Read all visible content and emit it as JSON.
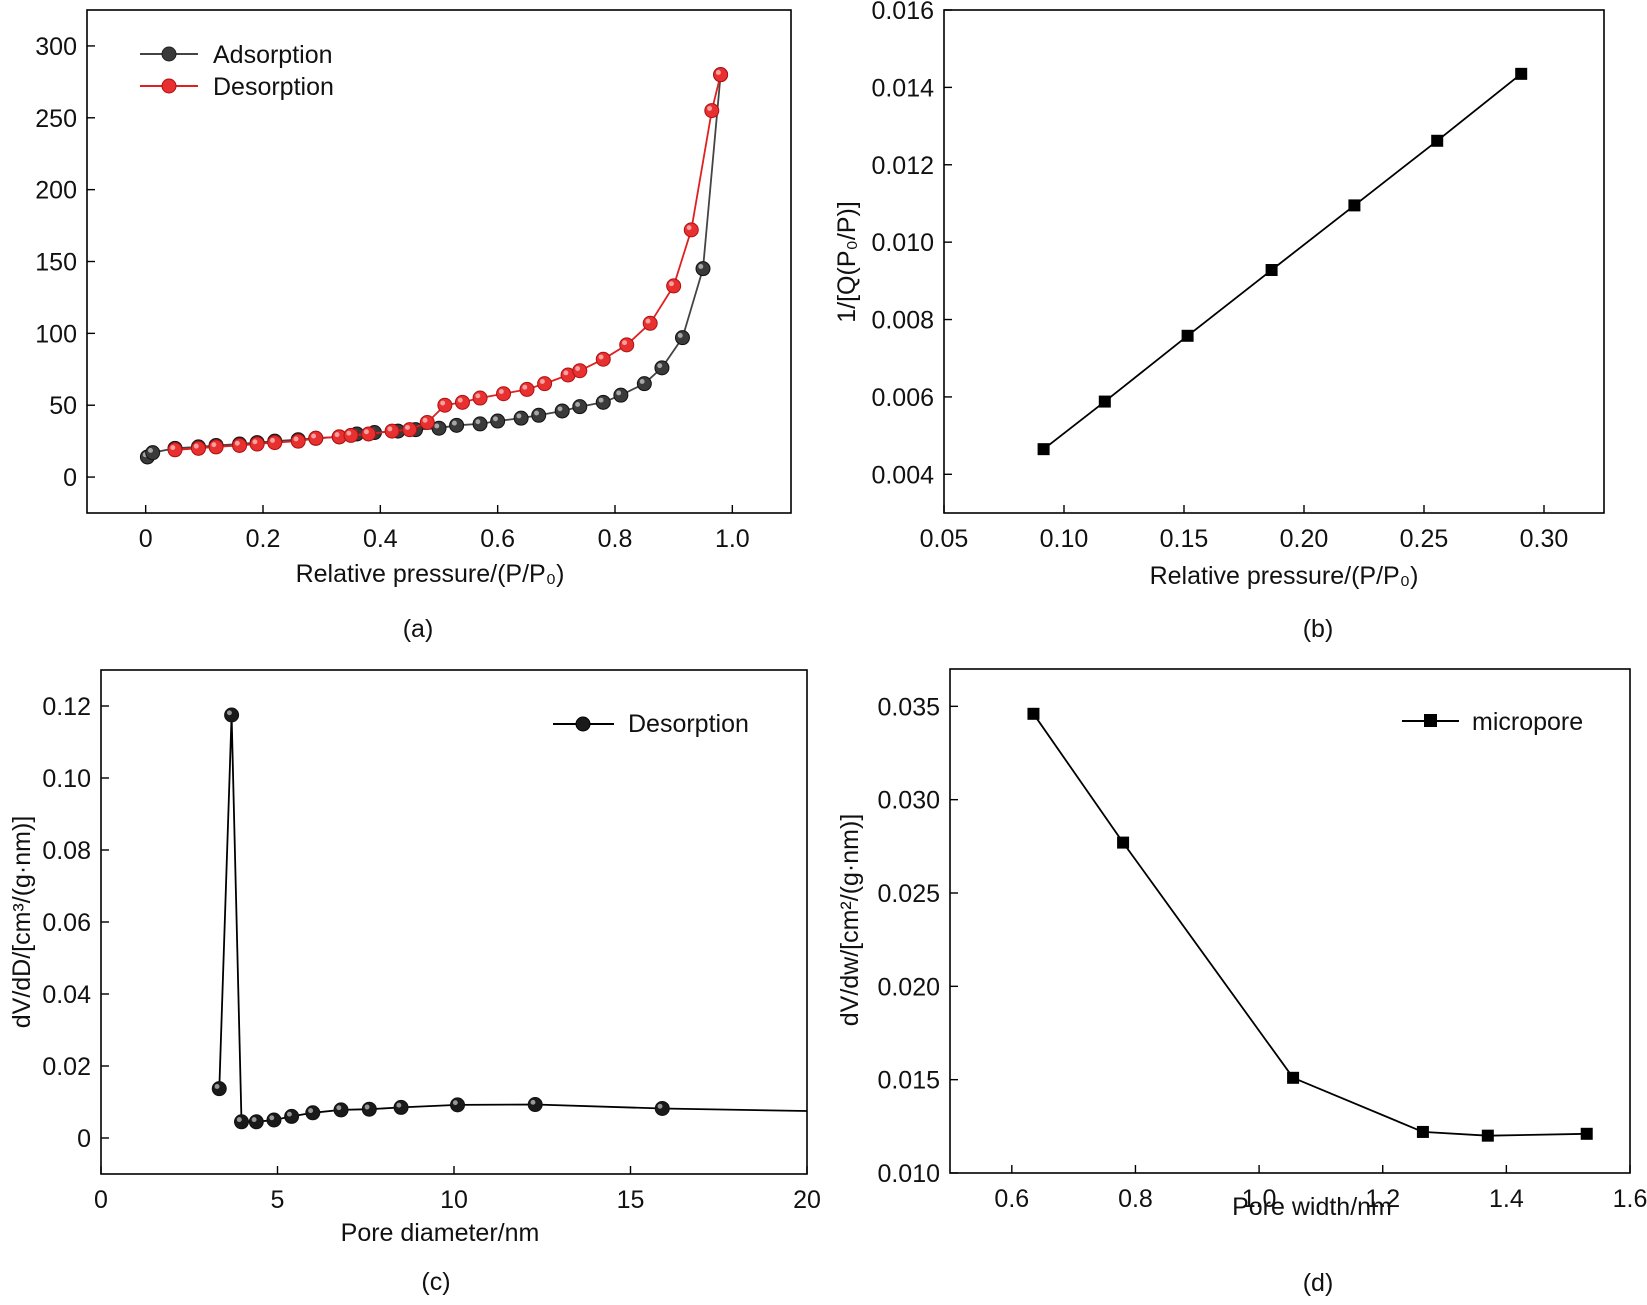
{
  "chart_data": [
    {
      "panel": "(a)",
      "type": "line",
      "xlabel": "Relative pressure/(P/P₀)",
      "ylabel": "",
      "xlim": [
        -0.1,
        1.1
      ],
      "ylim": [
        -25,
        325
      ],
      "xticks": [
        0,
        0.2,
        0.4,
        0.6,
        0.8,
        1.0
      ],
      "xtick_labels": [
        "0",
        "0.2",
        "0.4",
        "0.6",
        "0.8",
        "1.0"
      ],
      "yticks": [
        0,
        50,
        100,
        150,
        200,
        250,
        300
      ],
      "ytick_labels": [
        "0",
        "50",
        "100",
        "150",
        "200",
        "250",
        "300"
      ],
      "legend_position": "top-left",
      "series": [
        {
          "name": "Adsorption",
          "color": "#444444",
          "marker": "circle",
          "x": [
            0.003,
            0.012,
            0.05,
            0.09,
            0.12,
            0.16,
            0.19,
            0.22,
            0.26,
            0.29,
            0.33,
            0.36,
            0.39,
            0.43,
            0.46,
            0.5,
            0.53,
            0.57,
            0.6,
            0.64,
            0.67,
            0.71,
            0.74,
            0.78,
            0.81,
            0.85,
            0.88,
            0.915,
            0.95,
            0.98
          ],
          "y": [
            14,
            17,
            20,
            21,
            22,
            23,
            24,
            25,
            26,
            27,
            28,
            30,
            31,
            32,
            33,
            34,
            36,
            37,
            39,
            41,
            43,
            46,
            49,
            52,
            57,
            65,
            76,
            97,
            145,
            280
          ]
        },
        {
          "name": "Desorption",
          "color": "#e02020",
          "marker": "circle",
          "x": [
            0.05,
            0.09,
            0.12,
            0.16,
            0.19,
            0.22,
            0.26,
            0.29,
            0.33,
            0.35,
            0.38,
            0.42,
            0.45,
            0.48,
            0.51,
            0.54,
            0.57,
            0.61,
            0.65,
            0.68,
            0.72,
            0.74,
            0.78,
            0.82,
            0.86,
            0.9,
            0.93,
            0.965,
            0.98
          ],
          "y": [
            19,
            20,
            21,
            22,
            23,
            24,
            25,
            27,
            28,
            29,
            30,
            32,
            33,
            38,
            50,
            52,
            55,
            58,
            61,
            65,
            71,
            74,
            82,
            92,
            107,
            133,
            172,
            255,
            280
          ]
        }
      ]
    },
    {
      "panel": "(b)",
      "type": "line",
      "xlabel": "Relative pressure/(P/P₀)",
      "ylabel": "1/[Q(P₀/P)]",
      "xlim": [
        0.05,
        0.325
      ],
      "ylim": [
        0.003,
        0.016
      ],
      "xticks": [
        0.05,
        0.1,
        0.15,
        0.2,
        0.25,
        0.3
      ],
      "xtick_labels": [
        "0.05",
        "0.10",
        "0.15",
        "0.20",
        "0.25",
        "0.30"
      ],
      "yticks": [
        0.004,
        0.006,
        0.008,
        0.01,
        0.012,
        0.014,
        0.016
      ],
      "ytick_labels": [
        "0.004",
        "0.006",
        "0.008",
        "0.010",
        "0.012",
        "0.014",
        "0.016"
      ],
      "series": [
        {
          "name": "",
          "color": "#000000",
          "marker": "square",
          "x": [
            0.0915,
            0.117,
            0.1515,
            0.1865,
            0.221,
            0.2555,
            0.2905
          ],
          "y": [
            0.00465,
            0.00588,
            0.00758,
            0.00928,
            0.01095,
            0.01262,
            0.01435
          ]
        }
      ]
    },
    {
      "panel": "(c)",
      "type": "line",
      "xlabel": "Pore diameter/nm",
      "ylabel": "dV/dD/[cm³/(g·nm)]",
      "xlim": [
        0,
        20
      ],
      "ylim": [
        -0.01,
        0.13
      ],
      "xticks": [
        0,
        5,
        10,
        15,
        20
      ],
      "xtick_labels": [
        "0",
        "5",
        "10",
        "15",
        "20"
      ],
      "yticks": [
        0,
        0.02,
        0.04,
        0.06,
        0.08,
        0.1,
        0.12
      ],
      "ytick_labels": [
        "0",
        "0.02",
        "0.04",
        "0.06",
        "0.08",
        "0.10",
        "0.12"
      ],
      "legend_position": "top-right",
      "series": [
        {
          "name": "Desorption",
          "color": "#000000",
          "marker": "circle",
          "x": [
            3.35,
            3.7,
            3.98,
            4.4,
            4.9,
            5.4,
            6.0,
            6.8,
            7.6,
            8.5,
            10.1,
            12.3,
            15.9,
            20.0
          ],
          "y": [
            0.0137,
            0.1175,
            0.0045,
            0.0045,
            0.005,
            0.006,
            0.007,
            0.0078,
            0.008,
            0.0085,
            0.0092,
            0.0093,
            0.0082,
            0.0075
          ],
          "markers_visible": [
            true,
            true,
            true,
            true,
            true,
            true,
            true,
            true,
            true,
            true,
            true,
            true,
            true,
            false
          ]
        }
      ]
    },
    {
      "panel": "(d)",
      "type": "line",
      "xlabel": "Pore width/nm",
      "ylabel": "dV/dw/[cm²/(g·nm)]",
      "xlim": [
        0.5,
        1.6
      ],
      "ylim": [
        0.01,
        0.037
      ],
      "xticks": [
        0.6,
        0.8,
        1.0,
        1.2,
        1.4,
        1.6
      ],
      "xtick_labels": [
        "0.6",
        "0.8",
        "1.0",
        "1.2",
        "1.4",
        "1.6"
      ],
      "yticks": [
        0.01,
        0.015,
        0.02,
        0.025,
        0.03,
        0.035
      ],
      "ytick_labels": [
        "0.010",
        "0.015",
        "0.020",
        "0.025",
        "0.030",
        "0.035"
      ],
      "legend_position": "top-right",
      "series": [
        {
          "name": "micropore",
          "color": "#000000",
          "marker": "square",
          "x": [
            0.635,
            0.78,
            1.055,
            1.265,
            1.37,
            1.53
          ],
          "y": [
            0.0346,
            0.0277,
            0.0151,
            0.0122,
            0.012,
            0.0121
          ]
        }
      ]
    }
  ]
}
